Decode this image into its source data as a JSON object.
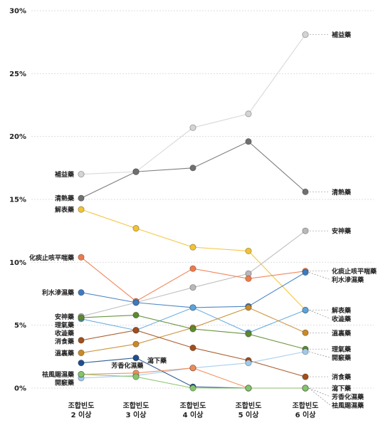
{
  "chart_data": {
    "type": "line",
    "y_axis": {
      "min": 0,
      "max": 30,
      "ticks": [
        "0%",
        "5%",
        "10%",
        "15%",
        "20%",
        "25%",
        "30%"
      ]
    },
    "grid": true,
    "categories": [
      [
        "조합빈도",
        "2 이상"
      ],
      [
        "조합빈도",
        "3 이상"
      ],
      [
        "조합빈도",
        "4 이상"
      ],
      [
        "조합빈도",
        "5 이상"
      ],
      [
        "조합빈도",
        "6 이상"
      ]
    ],
    "series": [
      {
        "name": "補益藥",
        "color": "#d4d4d4",
        "values": [
          17.0,
          17.2,
          20.7,
          21.8,
          28.1
        ],
        "left_label": "補益藥",
        "right_label": "補益藥"
      },
      {
        "name": "清熱藥",
        "color": "#707070",
        "values": [
          15.1,
          17.2,
          17.5,
          19.6,
          15.6
        ],
        "left_label": "清熱藥",
        "right_label": "清熱藥"
      },
      {
        "name": "解表藥",
        "color": "#f2c233",
        "values": [
          14.2,
          12.7,
          11.2,
          10.9,
          6.2
        ],
        "left_label": "解表藥",
        "right_label": "解表藥"
      },
      {
        "name": "安神藥",
        "color": "#b8b8b8",
        "values": [
          5.7,
          6.8,
          8.0,
          9.1,
          12.5
        ],
        "left_label": "安神藥",
        "right_label": "安神藥"
      },
      {
        "name": "化痰止咳平喘藥",
        "color": "#ee7a4a",
        "values": [
          10.4,
          6.9,
          9.5,
          8.7,
          9.3
        ],
        "left_label": "化痰止咳平喘藥",
        "right_label": "化痰止咳平喘藥"
      },
      {
        "name": "利水滲濕藥",
        "color": "#3d7abf",
        "values": [
          7.6,
          6.8,
          6.4,
          6.5,
          9.2
        ],
        "left_label": "利水滲濕藥",
        "right_label": "利水滲濕藥"
      },
      {
        "name": "收澁藥",
        "color": "#5aa4de",
        "values": [
          5.5,
          4.6,
          6.4,
          4.4,
          6.2
        ],
        "left_label": "收澁藥",
        "right_label": "收澁藥"
      },
      {
        "name": "溫裏藥",
        "color": "#c8892a",
        "values": [
          2.8,
          3.5,
          4.8,
          6.4,
          4.4
        ],
        "left_label": "溫裏藥",
        "right_label": "溫裏藥"
      },
      {
        "name": "理氣藥",
        "color": "#5b8a2c",
        "values": [
          5.6,
          5.8,
          4.7,
          4.3,
          3.1
        ],
        "left_label": "理氣藥",
        "right_label": "理氣藥"
      },
      {
        "name": "消食藥",
        "color": "#a24f1c",
        "values": [
          3.8,
          4.6,
          3.2,
          2.2,
          0.9
        ],
        "left_label": "消食藥",
        "right_label": "消食藥"
      },
      {
        "name": "開竅藥",
        "color": "#9fc9ec",
        "values": [
          0.8,
          1.0,
          1.6,
          2.0,
          2.9
        ],
        "left_label": "開竅藥",
        "right_label": "開竅藥"
      },
      {
        "name": "瀉下藥",
        "color": "#1f4e8c",
        "values": [
          2.0,
          2.4,
          0.1,
          0.0,
          0.0
        ],
        "left_label": "",
        "right_label": "瀉下藥"
      },
      {
        "name": "芳香化濕藥",
        "color": "#f08a55",
        "values": [
          1.1,
          1.2,
          1.6,
          0.0,
          0.0
        ],
        "left_label": "",
        "right_label": "芳香化濕藥"
      },
      {
        "name": "祛風賜濕藥",
        "color": "#84c46a",
        "values": [
          1.1,
          0.9,
          0.0,
          0.0,
          0.0
        ],
        "left_label": "祛風賜濕藥",
        "right_label": "祛風賜濕藥"
      }
    ],
    "inline_labels": [
      {
        "text": "芳香化濕藥",
        "x_index": 0.55,
        "value": 1.6
      },
      {
        "text": "瀉下藥",
        "x_index": 1.2,
        "value": 2.0
      }
    ]
  }
}
